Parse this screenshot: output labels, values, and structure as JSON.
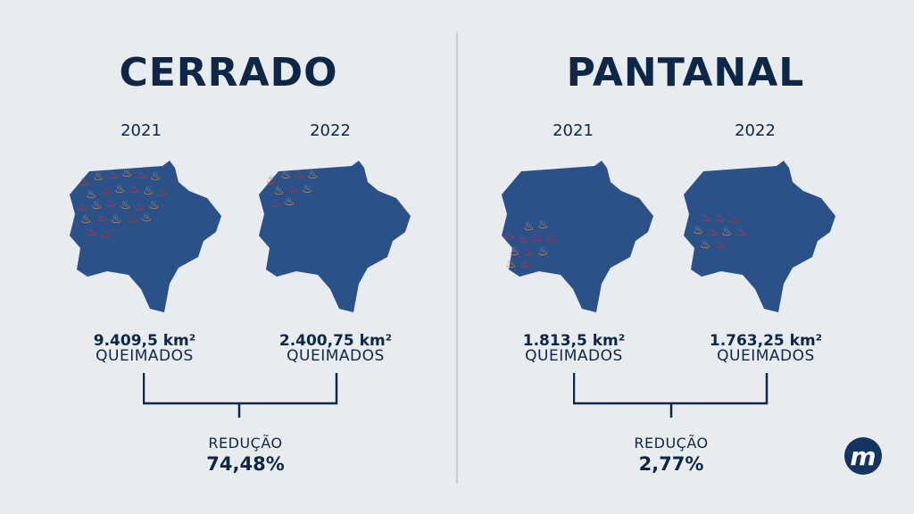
{
  "colors": {
    "background": "#e9ecef",
    "navy": "#0c2748",
    "map_fill": "#2a5289",
    "fire_red": "#e0252b",
    "fire_orange": "#f08a24"
  },
  "logo": {
    "icon": "m-logo-icon",
    "letter": "m"
  },
  "sections": [
    {
      "title": "CERRADO",
      "maps": [
        {
          "year": "2021",
          "value": "9.409,5 km²",
          "caption": "QUEIMADOS",
          "fire_region": "north-west-large"
        },
        {
          "year": "2022",
          "value": "2.400,75 km²",
          "caption": "QUEIMADOS",
          "fire_region": "north-west-small"
        }
      ],
      "reduction_label": "REDUÇÃO",
      "reduction_value": "74,48%"
    },
    {
      "title": "PANTANAL",
      "maps": [
        {
          "year": "2021",
          "value": "1.813,5 km²",
          "caption": "QUEIMADOS",
          "fire_region": "west-mid"
        },
        {
          "year": "2022",
          "value": "1.763,25 km²",
          "caption": "QUEIMADOS",
          "fire_region": "west-mid-small"
        }
      ],
      "reduction_label": "REDUÇÃO",
      "reduction_value": "2,77%"
    }
  ]
}
